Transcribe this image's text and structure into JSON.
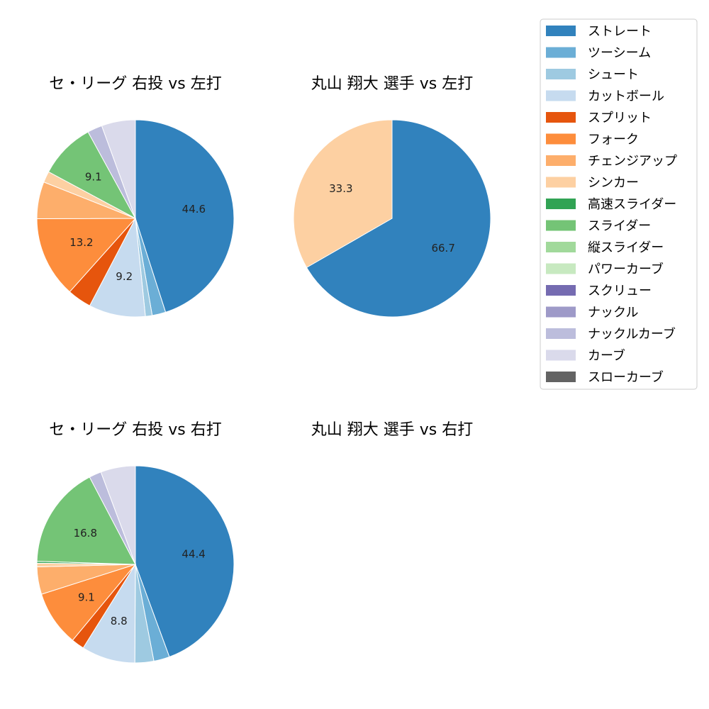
{
  "legend": {
    "items": [
      {
        "label": "ストレート",
        "color": "#3182bd"
      },
      {
        "label": "ツーシーム",
        "color": "#6baed6"
      },
      {
        "label": "シュート",
        "color": "#9ecae1"
      },
      {
        "label": "カットボール",
        "color": "#c6dbef"
      },
      {
        "label": "スプリット",
        "color": "#e6550d"
      },
      {
        "label": "フォーク",
        "color": "#fd8d3c"
      },
      {
        "label": "チェンジアップ",
        "color": "#fdae6b"
      },
      {
        "label": "シンカー",
        "color": "#fdd0a2"
      },
      {
        "label": "高速スライダー",
        "color": "#31a354"
      },
      {
        "label": "スライダー",
        "color": "#74c476"
      },
      {
        "label": "縦スライダー",
        "color": "#a1d99b"
      },
      {
        "label": "パワーカーブ",
        "color": "#c7e9c0"
      },
      {
        "label": "スクリュー",
        "color": "#756bb1"
      },
      {
        "label": "ナックル",
        "color": "#9e9ac8"
      },
      {
        "label": "ナックルカーブ",
        "color": "#bcbddc"
      },
      {
        "label": "カーブ",
        "color": "#dadaeb"
      },
      {
        "label": "スローカーブ",
        "color": "#636363"
      }
    ]
  },
  "chart_data": [
    {
      "type": "pie",
      "title": "セ・リーグ 右投 vs 左打",
      "slices": [
        {
          "label": "ストレート",
          "value": 44.6,
          "shown": "44.6"
        },
        {
          "label": "ツーシーム",
          "value": 2.2,
          "shown": ""
        },
        {
          "label": "シュート",
          "value": 1.1,
          "shown": ""
        },
        {
          "label": "カットボール",
          "value": 9.2,
          "shown": "9.2"
        },
        {
          "label": "スプリット",
          "value": 3.9,
          "shown": ""
        },
        {
          "label": "フォーク",
          "value": 13.2,
          "shown": "13.2"
        },
        {
          "label": "チェンジアップ",
          "value": 6.0,
          "shown": ""
        },
        {
          "label": "シンカー",
          "value": 1.8,
          "shown": ""
        },
        {
          "label": "スライダー",
          "value": 9.1,
          "shown": "9.1"
        },
        {
          "label": "ナックルカーブ",
          "value": 2.4,
          "shown": ""
        },
        {
          "label": "カーブ",
          "value": 5.5,
          "shown": ""
        }
      ]
    },
    {
      "type": "pie",
      "title": "丸山 翔大 選手 vs 左打",
      "slices": [
        {
          "label": "ストレート",
          "value": 66.7,
          "shown": "66.7"
        },
        {
          "label": "シンカー",
          "value": 33.3,
          "shown": "33.3"
        }
      ]
    },
    {
      "type": "pie",
      "title": "セ・リーグ 右投 vs 右打",
      "slices": [
        {
          "label": "ストレート",
          "value": 44.4,
          "shown": "44.4"
        },
        {
          "label": "ツーシーム",
          "value": 2.6,
          "shown": ""
        },
        {
          "label": "シュート",
          "value": 3.1,
          "shown": ""
        },
        {
          "label": "カットボール",
          "value": 8.8,
          "shown": "8.8"
        },
        {
          "label": "スプリット",
          "value": 2.1,
          "shown": ""
        },
        {
          "label": "フォーク",
          "value": 9.1,
          "shown": "9.1"
        },
        {
          "label": "チェンジアップ",
          "value": 4.5,
          "shown": ""
        },
        {
          "label": "シンカー",
          "value": 0.6,
          "shown": ""
        },
        {
          "label": "高速スライダー",
          "value": 0.3,
          "shown": ""
        },
        {
          "label": "スライダー",
          "value": 16.8,
          "shown": "16.8"
        },
        {
          "label": "ナックルカーブ",
          "value": 2.0,
          "shown": ""
        },
        {
          "label": "カーブ",
          "value": 5.7,
          "shown": ""
        }
      ]
    },
    {
      "type": "pie",
      "title": "丸山 翔大 選手 vs 右打",
      "slices": []
    }
  ]
}
